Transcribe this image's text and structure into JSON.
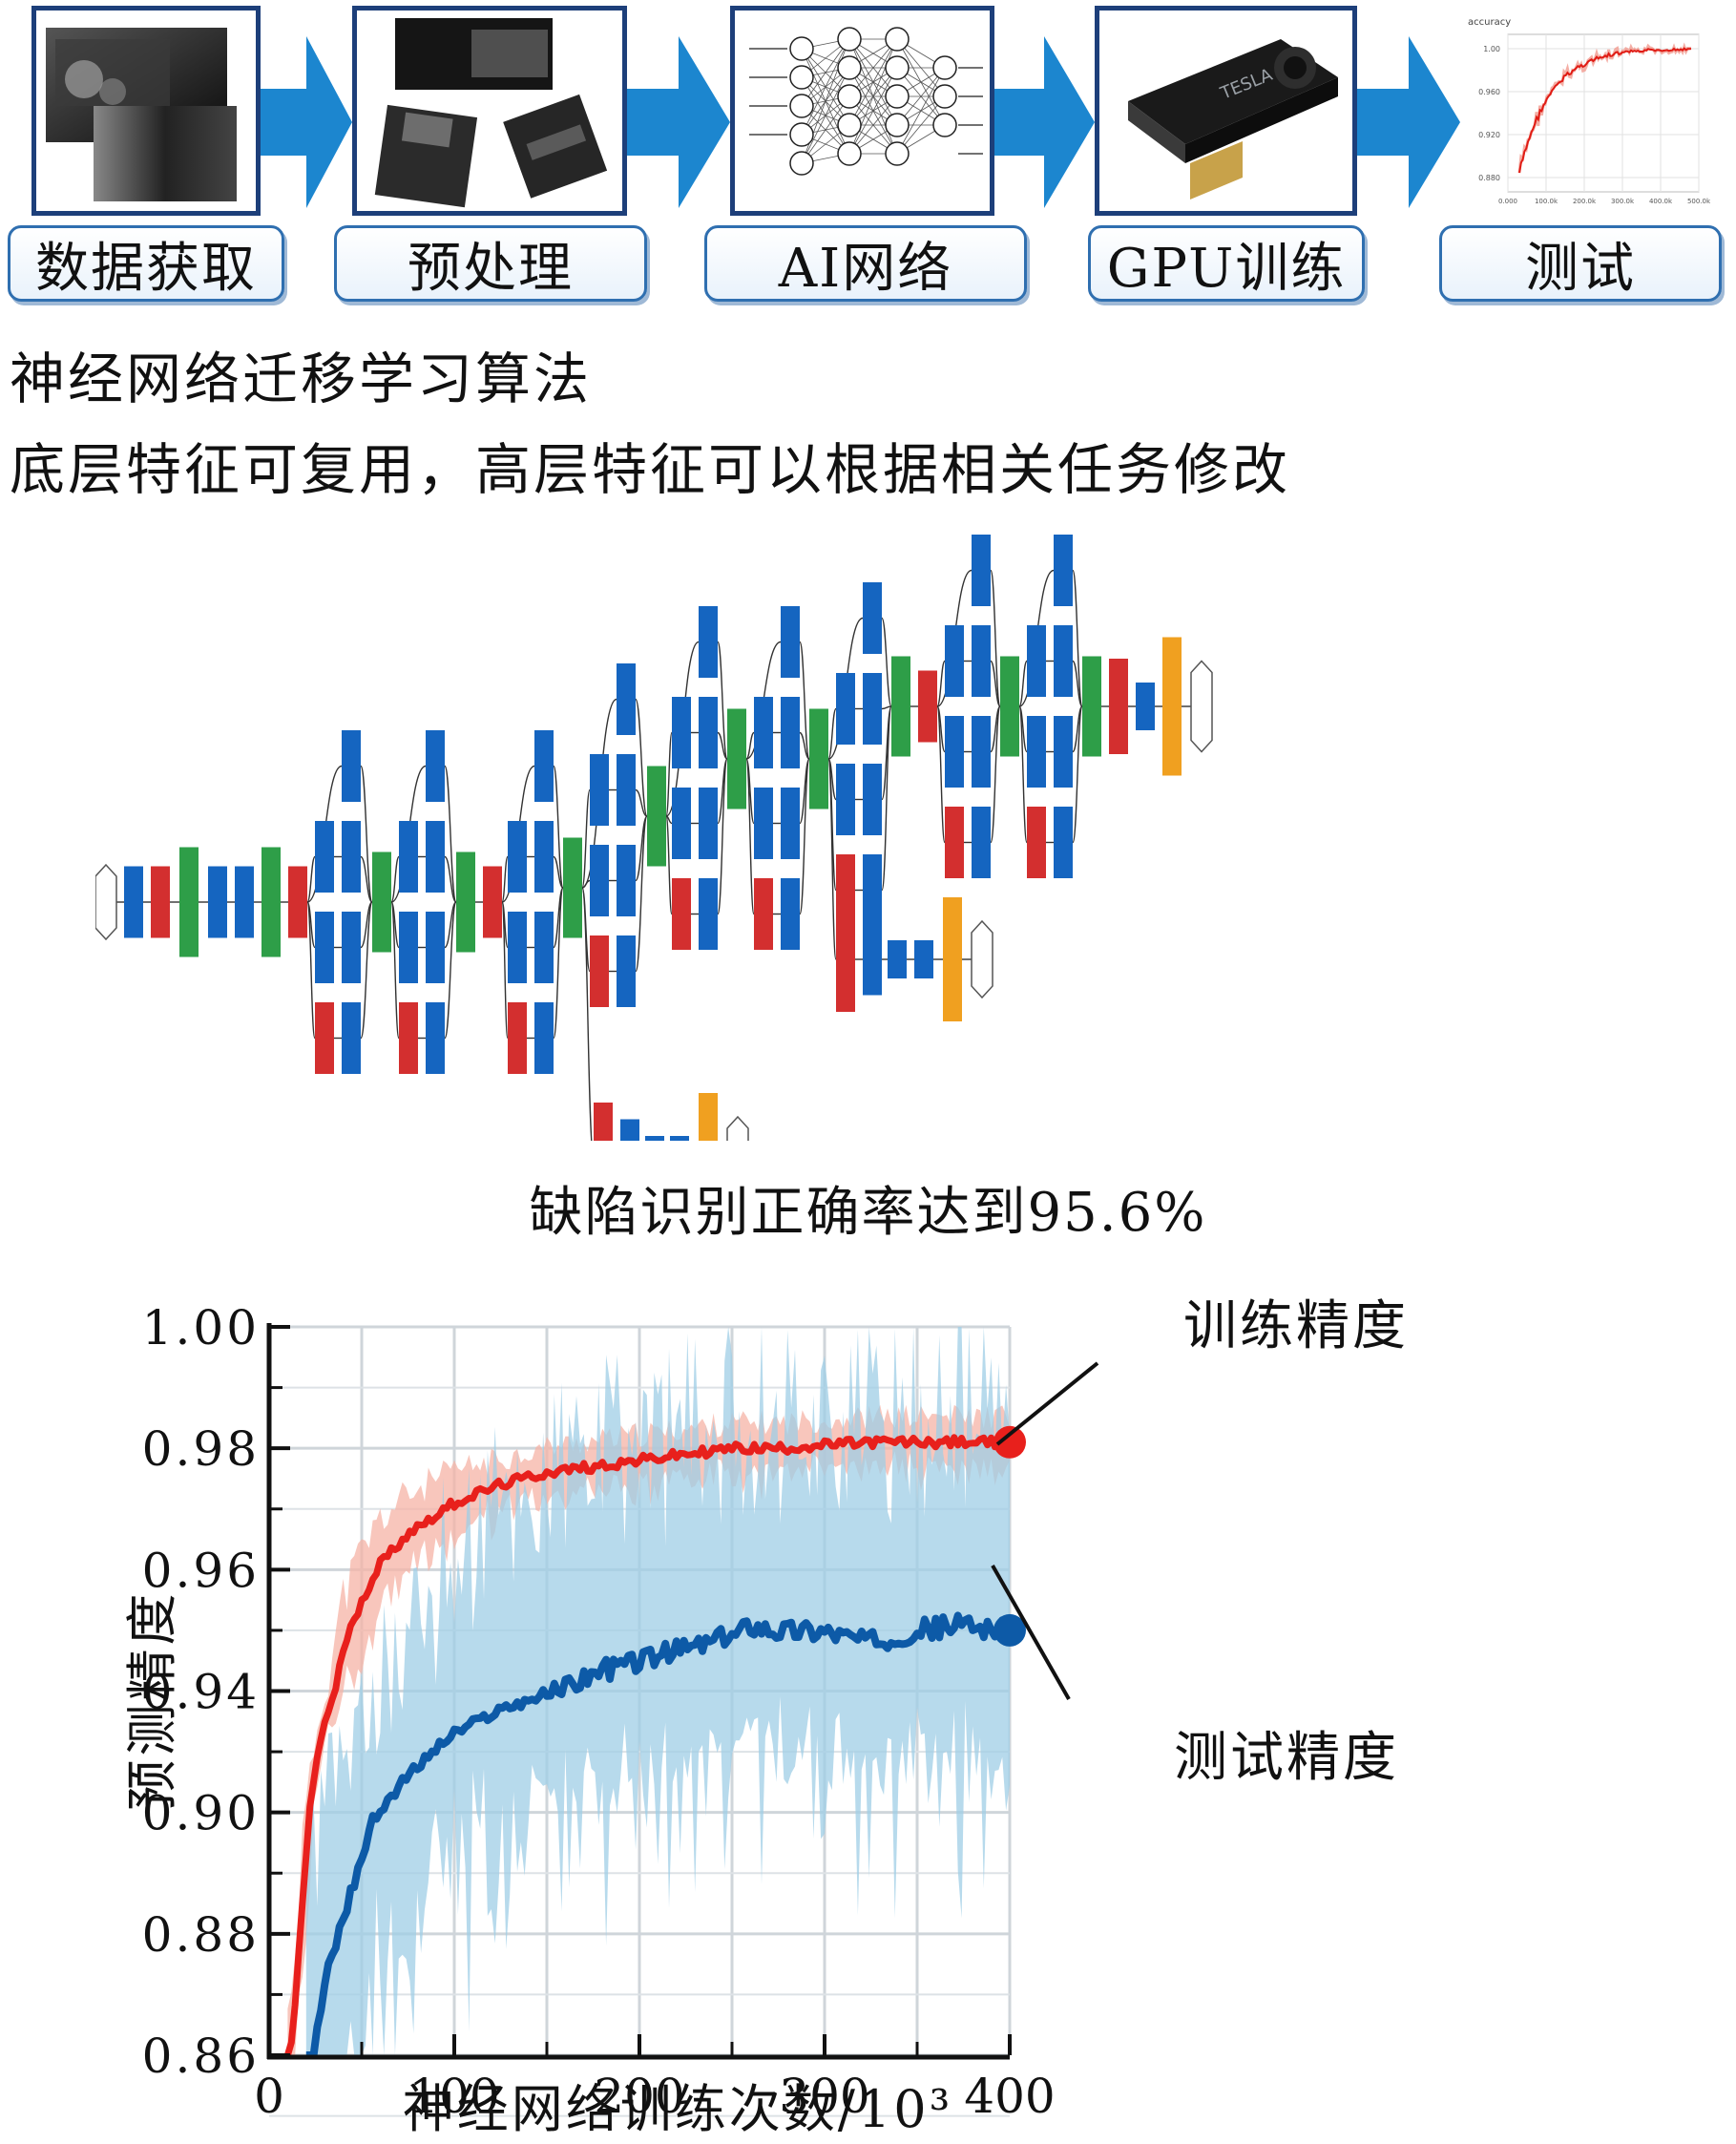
{
  "pipeline": {
    "stages": [
      {
        "label": "数据获取",
        "icon": "image-stack-icon"
      },
      {
        "label": "预处理",
        "icon": "image-crops-icon"
      },
      {
        "label": "AI网络",
        "icon": "neural-network-icon"
      },
      {
        "label": "GPU训练",
        "icon": "gpu-card-icon"
      },
      {
        "label": "测试",
        "icon": "accuracy-curve-icon"
      }
    ],
    "gpu_brand": "TESLA",
    "thumb_chart_title": "accuracy",
    "thumb_y_ticks": [
      "1.00",
      "0.960",
      "0.920",
      "0.880"
    ],
    "thumb_x_ticks": [
      "0.000",
      "100.0k",
      "200.0k",
      "300.0k",
      "400.0k",
      "500.0k"
    ]
  },
  "text": {
    "line1": "神经网络迁移学习算法",
    "line2": "底层特征可复用，高层特征可以根据相关任务修改",
    "caption": "缺陷识别正确率达到95.6%"
  },
  "network": {
    "layer_colors": {
      "conv": "#1565c0",
      "pool": "#d32f2f",
      "concat": "#2e9e48",
      "softmax": "#f0a020"
    }
  },
  "chart_data": {
    "type": "line",
    "xlabel": "神经网络训练次数/10³",
    "ylabel": "预测精度",
    "x_ticks": [
      0,
      100,
      200,
      300,
      400
    ],
    "y_tick_labels": [
      "1.00",
      "0.98",
      "0.96",
      "0.94",
      "0.90",
      "0.88",
      "0.86"
    ],
    "xlim": [
      0,
      400
    ],
    "grid": true,
    "series": [
      {
        "name": "训练精度",
        "color": "#e8201c",
        "band_color": "#f6b3a6",
        "x": [
          10,
          15,
          20,
          25,
          30,
          40,
          50,
          60,
          75,
          100,
          125,
          150,
          175,
          200,
          225,
          250,
          275,
          300,
          325,
          350,
          375,
          400
        ],
        "y": [
          0.855,
          0.872,
          0.893,
          0.915,
          0.93,
          0.947,
          0.955,
          0.961,
          0.966,
          0.971,
          0.974,
          0.976,
          0.977,
          0.978,
          0.979,
          0.98,
          0.98,
          0.9805,
          0.981,
          0.981,
          0.981,
          0.981
        ]
      },
      {
        "name": "测试精度",
        "color": "#0d5aa7",
        "band_color": "#9fcde6",
        "x": [
          20,
          25,
          30,
          40,
          50,
          60,
          75,
          90,
          100,
          125,
          150,
          175,
          200,
          225,
          250,
          260,
          275,
          300,
          325,
          350,
          375,
          400
        ],
        "y": [
          0.852,
          0.862,
          0.872,
          0.883,
          0.893,
          0.901,
          0.912,
          0.921,
          0.926,
          0.934,
          0.939,
          0.943,
          0.945,
          0.947,
          0.949,
          0.951,
          0.95,
          0.95,
          0.948,
          0.95,
          0.951,
          0.95
        ]
      }
    ]
  }
}
